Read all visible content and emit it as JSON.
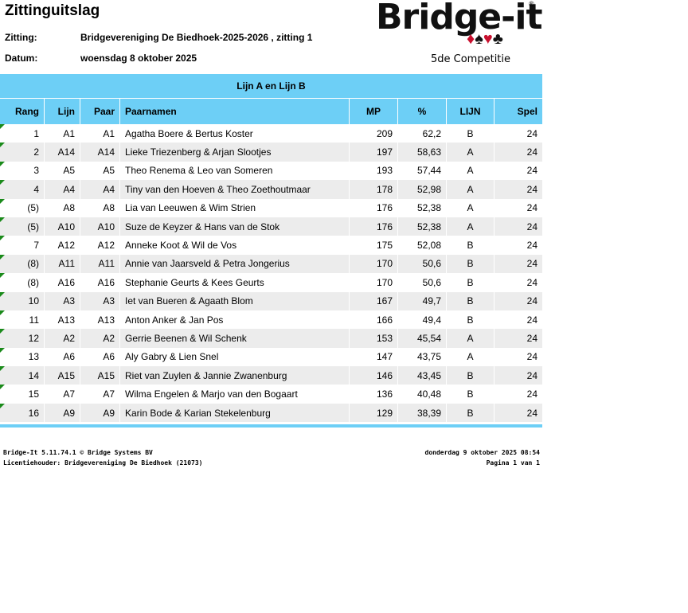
{
  "header": {
    "title": "Zittinguitslag",
    "fields": [
      {
        "label": "Zitting:",
        "value": "Bridgevereniging De Biedhoek-2025-2026 , zitting 1"
      },
      {
        "label": "Datum:",
        "value": "woensdag 8 oktober 2025"
      }
    ]
  },
  "logo": {
    "text": "Bridge-it",
    "mark": "®",
    "suits": [
      "♦",
      "♠",
      "♥",
      "♣"
    ],
    "subtitle": "5de Competitie"
  },
  "table": {
    "caption": "Lijn A en Lijn B",
    "columns": [
      "Rang",
      "Lijn",
      "Paar",
      "Paarnamen",
      "MP",
      "%",
      "LIJN",
      "Spel"
    ],
    "rows": [
      [
        "1",
        "A1",
        "A1",
        "Agatha Boere & Bertus Koster",
        "209",
        "62,2",
        "B",
        "24"
      ],
      [
        "2",
        "A14",
        "A14",
        "Lieke Triezenberg & Arjan Slootjes",
        "197",
        "58,63",
        "A",
        "24"
      ],
      [
        "3",
        "A5",
        "A5",
        "Theo Renema & Leo van Someren",
        "193",
        "57,44",
        "A",
        "24"
      ],
      [
        "4",
        "A4",
        "A4",
        "Tiny van den Hoeven & Theo Zoethoutmaar",
        "178",
        "52,98",
        "A",
        "24"
      ],
      [
        "(5)",
        "A8",
        "A8",
        "Lia van Leeuwen & Wim Strien",
        "176",
        "52,38",
        "A",
        "24"
      ],
      [
        "(5)",
        "A10",
        "A10",
        "Suze de Keyzer & Hans van de Stok",
        "176",
        "52,38",
        "A",
        "24"
      ],
      [
        "7",
        "A12",
        "A12",
        "Anneke Koot & Wil de Vos",
        "175",
        "52,08",
        "B",
        "24"
      ],
      [
        "(8)",
        "A11",
        "A11",
        "Annie van Jaarsveld & Petra Jongerius",
        "170",
        "50,6",
        "B",
        "24"
      ],
      [
        "(8)",
        "A16",
        "A16",
        "Stephanie Geurts & Kees Geurts",
        "170",
        "50,6",
        "B",
        "24"
      ],
      [
        "10",
        "A3",
        "A3",
        "Iet van Bueren & Agaath Blom",
        "167",
        "49,7",
        "B",
        "24"
      ],
      [
        "11",
        "A13",
        "A13",
        "Anton Anker & Jan Pos",
        "166",
        "49,4",
        "B",
        "24"
      ],
      [
        "12",
        "A2",
        "A2",
        "Gerrie Beenen & Wil Schenk",
        "153",
        "45,54",
        "A",
        "24"
      ],
      [
        "13",
        "A6",
        "A6",
        "Aly Gabry & Lien Snel",
        "147",
        "43,75",
        "A",
        "24"
      ],
      [
        "14",
        "A15",
        "A15",
        "Riet van Zuylen & Jannie Zwanenburg",
        "146",
        "43,45",
        "B",
        "24"
      ],
      [
        "15",
        "A7",
        "A7",
        "Wilma Engelen & Marjo van den Bogaart",
        "136",
        "40,48",
        "B",
        "24"
      ],
      [
        "16",
        "A9",
        "A9",
        "Karin Bode & Karian Stekelenburg",
        "129",
        "38,39",
        "B",
        "24"
      ]
    ]
  },
  "footer": {
    "left": [
      "Bridge-It 5.11.74.1 © Bridge Systems BV",
      "Licentiehouder: Bridgevereniging De Biedhoek (21073)"
    ],
    "right": [
      "donderdag 9 oktober 2025 08:54",
      "Pagina 1 van 1"
    ]
  }
}
